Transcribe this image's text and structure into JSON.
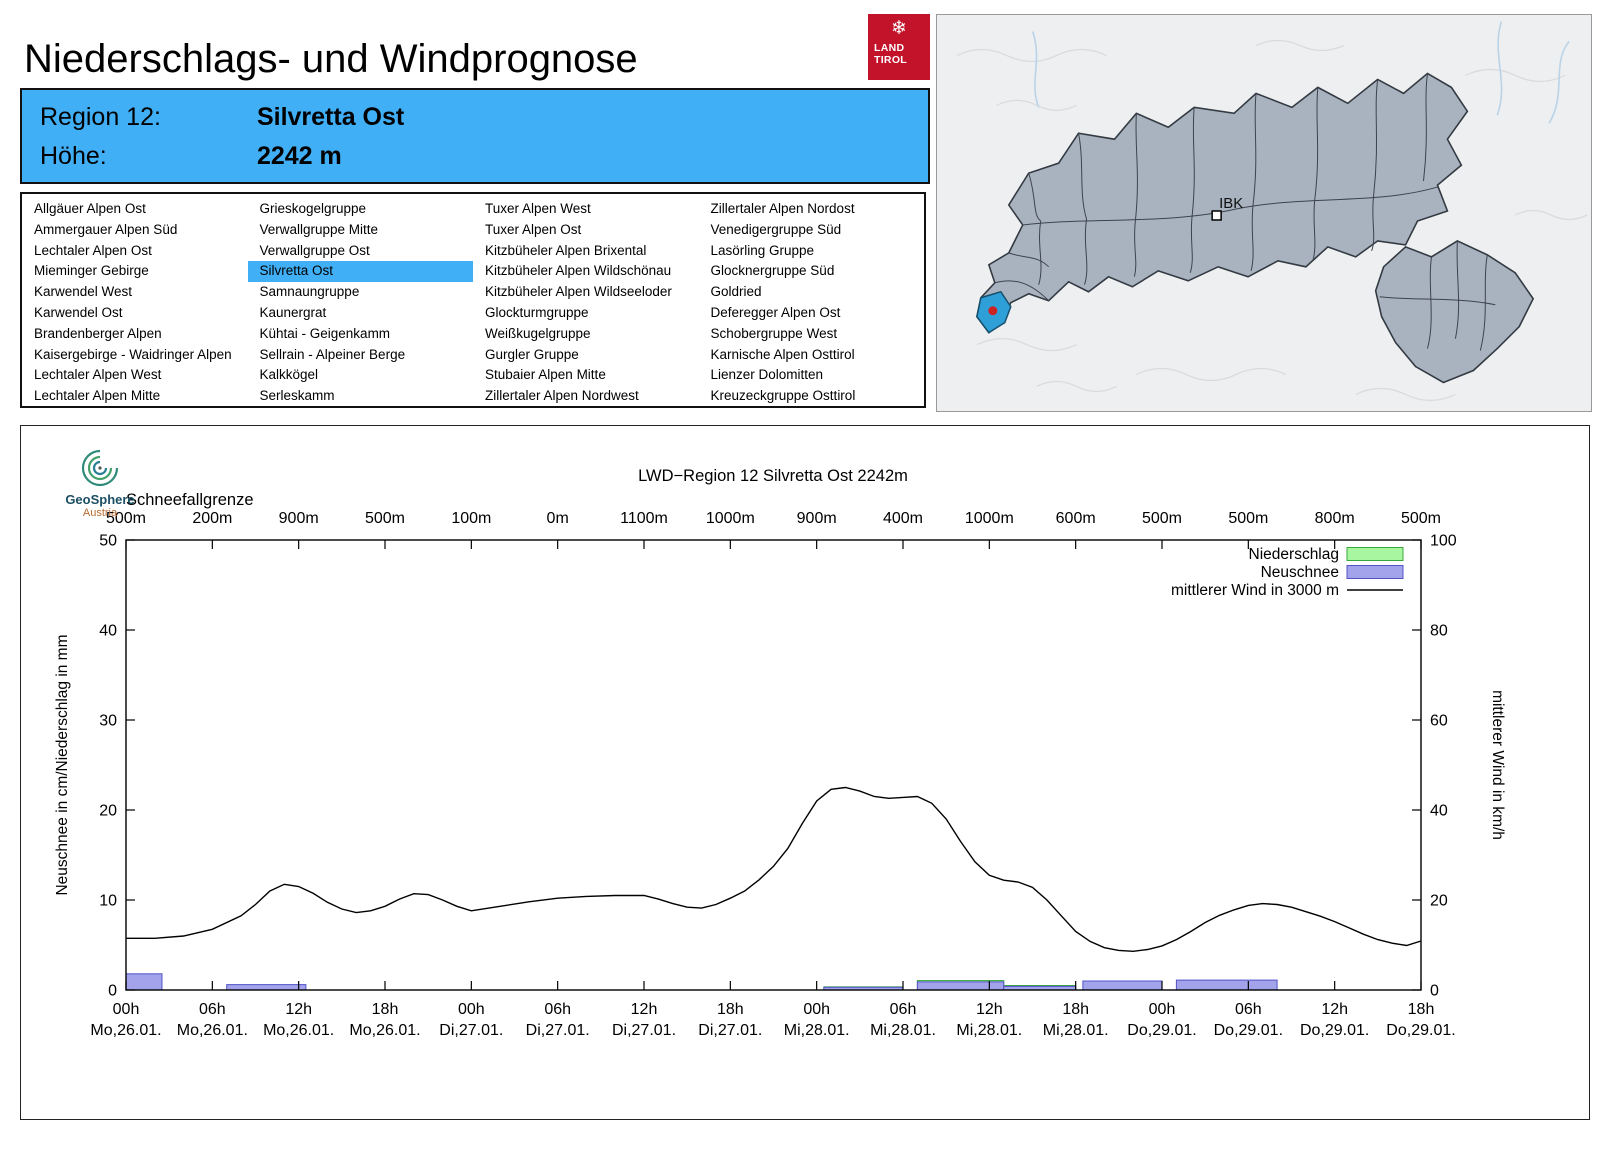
{
  "page": {
    "title": "Niederschlags- und Windprognose"
  },
  "colors": {
    "highlight_blue": "#41AFF5",
    "logo_red": "#C3132B",
    "niederschlag_fill": "#A8F7A0",
    "niederschlag_border": "#37A93C",
    "neuschnee_fill": "#A3A3EC",
    "neuschnee_border": "#5353C8",
    "wind_line": "#000000",
    "map_region_fill": "#A9B3C0",
    "map_region_border": "#343A42",
    "map_selected_fill": "#2F9FD8",
    "map_marker_red": "#CC2222"
  },
  "logo": {
    "line1": "LAND",
    "line2": "TIROL",
    "snowflake": "❄"
  },
  "map": {
    "city_label": "IBK"
  },
  "region_header": {
    "region_label": "Region 12:",
    "region_value": "Silvretta Ost",
    "altitude_label": "Höhe:",
    "altitude_value": "2242 m"
  },
  "region_list": {
    "selected": "Silvretta Ost",
    "columns": [
      [
        "Allgäuer Alpen Ost",
        "Ammergauer Alpen Süd",
        "Lechtaler Alpen Ost",
        "Mieminger Gebirge",
        "Karwendel West",
        "Karwendel Ost",
        "Brandenberger Alpen",
        "Kaisergebirge - Waidringer Alpen",
        "Lechtaler Alpen West",
        "Lechtaler Alpen Mitte"
      ],
      [
        "Grieskogelgruppe",
        "Verwallgruppe Mitte",
        "Verwallgruppe Ost",
        "Silvretta Ost",
        "Samnaungruppe",
        "Kaunergrat",
        "Kühtai - Geigenkamm",
        "Sellrain - Alpeiner Berge",
        "Kalkkögel",
        "Serleskamm"
      ],
      [
        "Tuxer Alpen West",
        "Tuxer Alpen Ost",
        "Kitzbüheler Alpen Brixental",
        "Kitzbüheler Alpen Wildschönau",
        "Kitzbüheler Alpen Wildseeloder",
        "Glockturmgruppe",
        "Weißkugelgruppe",
        "Gurgler Gruppe",
        "Stubaier Alpen Mitte",
        "Zillertaler Alpen Nordwest"
      ],
      [
        "Zillertaler Alpen Nordost",
        "Venedigergruppe Süd",
        "Lasörling Gruppe",
        "Glocknergruppe Süd",
        "Goldried",
        "Deferegger Alpen Ost",
        "Schobergruppe West",
        "Karnische Alpen Osttirol",
        "Lienzer Dolomitten",
        "Kreuzeckgruppe Osttirol"
      ]
    ]
  },
  "geosphere": {
    "name": "GeoSphere",
    "country": "Austria"
  },
  "chart_data": {
    "type": "line+bar",
    "title": "LWD−Region 12 Silvretta Ost 2242m",
    "snowline_label": "Schneefallgrenze",
    "snowline_values": [
      "500m",
      "200m",
      "900m",
      "500m",
      "100m",
      "0m",
      "1100m",
      "1000m",
      "900m",
      "400m",
      "1000m",
      "600m",
      "500m",
      "500m",
      "800m",
      "500m"
    ],
    "ylabel_left": "Neuschnee in cm/Niederschlag in mm",
    "ylabel_right": "mittlerer Wind in km/h",
    "ylim_left": [
      0,
      50
    ],
    "ylim_right": [
      0,
      100
    ],
    "yticks_left": [
      0,
      10,
      20,
      30,
      40,
      50
    ],
    "yticks_right": [
      0,
      20,
      40,
      60,
      80,
      100
    ],
    "x_hours_range": [
      0,
      90
    ],
    "x_tick_step_hours": 6,
    "x_ticks": [
      {
        "hour": "00h",
        "day": "Mo,26.01."
      },
      {
        "hour": "06h",
        "day": "Mo,26.01."
      },
      {
        "hour": "12h",
        "day": "Mo,26.01."
      },
      {
        "hour": "18h",
        "day": "Mo,26.01."
      },
      {
        "hour": "00h",
        "day": "Di,27.01."
      },
      {
        "hour": "06h",
        "day": "Di,27.01."
      },
      {
        "hour": "12h",
        "day": "Di,27.01."
      },
      {
        "hour": "18h",
        "day": "Di,27.01."
      },
      {
        "hour": "00h",
        "day": "Mi,28.01."
      },
      {
        "hour": "06h",
        "day": "Mi,28.01."
      },
      {
        "hour": "12h",
        "day": "Mi,28.01."
      },
      {
        "hour": "18h",
        "day": "Mi,28.01."
      },
      {
        "hour": "00h",
        "day": "Do,29.01."
      },
      {
        "hour": "06h",
        "day": "Do,29.01."
      },
      {
        "hour": "12h",
        "day": "Do,29.01."
      },
      {
        "hour": "18h",
        "day": "Do,29.01."
      }
    ],
    "legend": [
      {
        "label": "Niederschlag",
        "type": "box",
        "fill": "#A8F7A0",
        "border": "#37A93C"
      },
      {
        "label": "Neuschnee",
        "type": "box",
        "fill": "#A3A3EC",
        "border": "#5353C8"
      },
      {
        "label": "mittlerer Wind in 3000 m",
        "type": "line",
        "color": "#000000"
      }
    ],
    "wind_series": {
      "name": "mittlerer Wind in 3000 m",
      "unit": "km/h",
      "points": [
        [
          0,
          11.5
        ],
        [
          2,
          11.5
        ],
        [
          4,
          12
        ],
        [
          6,
          13.5
        ],
        [
          8,
          16.5
        ],
        [
          9,
          19
        ],
        [
          10,
          22
        ],
        [
          11,
          23.5
        ],
        [
          12,
          23
        ],
        [
          13,
          21.5
        ],
        [
          14,
          19.5
        ],
        [
          15,
          18
        ],
        [
          16,
          17.2
        ],
        [
          17,
          17.6
        ],
        [
          18,
          18.6
        ],
        [
          19,
          20.2
        ],
        [
          20,
          21.4
        ],
        [
          21,
          21.2
        ],
        [
          22,
          20
        ],
        [
          23,
          18.6
        ],
        [
          24,
          17.6
        ],
        [
          26,
          18.6
        ],
        [
          28,
          19.6
        ],
        [
          30,
          20.4
        ],
        [
          32,
          20.8
        ],
        [
          34,
          21
        ],
        [
          36,
          21
        ],
        [
          37,
          20.2
        ],
        [
          38,
          19.2
        ],
        [
          39,
          18.4
        ],
        [
          40,
          18.2
        ],
        [
          41,
          19
        ],
        [
          42,
          20.4
        ],
        [
          43,
          22
        ],
        [
          44,
          24.5
        ],
        [
          45,
          27.5
        ],
        [
          46,
          31.5
        ],
        [
          47,
          37
        ],
        [
          48,
          42
        ],
        [
          49,
          44.6
        ],
        [
          50,
          45
        ],
        [
          51,
          44.2
        ],
        [
          52,
          43
        ],
        [
          53,
          42.6
        ],
        [
          54,
          42.8
        ],
        [
          55,
          43
        ],
        [
          56,
          41.5
        ],
        [
          57,
          38
        ],
        [
          58,
          33
        ],
        [
          59,
          28.5
        ],
        [
          60,
          25.5
        ],
        [
          61,
          24.4
        ],
        [
          62,
          24
        ],
        [
          63,
          22.8
        ],
        [
          64,
          20
        ],
        [
          65,
          16.5
        ],
        [
          66,
          13
        ],
        [
          67,
          10.8
        ],
        [
          68,
          9.4
        ],
        [
          69,
          8.8
        ],
        [
          70,
          8.6
        ],
        [
          71,
          9
        ],
        [
          72,
          9.8
        ],
        [
          73,
          11.2
        ],
        [
          74,
          13
        ],
        [
          75,
          15
        ],
        [
          76,
          16.6
        ],
        [
          77,
          17.8
        ],
        [
          78,
          18.8
        ],
        [
          79,
          19.2
        ],
        [
          80,
          19
        ],
        [
          81,
          18.4
        ],
        [
          82,
          17.4
        ],
        [
          83,
          16.4
        ],
        [
          84,
          15.2
        ],
        [
          85,
          13.8
        ],
        [
          86,
          12.4
        ],
        [
          87,
          11.2
        ],
        [
          88,
          10.4
        ],
        [
          89,
          9.9
        ],
        [
          90,
          10.9
        ]
      ]
    },
    "niederschlag_bars": [
      [
        48.5,
        54,
        0.35
      ],
      [
        55,
        61,
        1.05
      ],
      [
        61,
        66,
        0.5
      ]
    ],
    "neuschnee_bars": [
      [
        0,
        2.5,
        1.8
      ],
      [
        7,
        12.5,
        0.6
      ],
      [
        48.5,
        54,
        0.3
      ],
      [
        55,
        61,
        0.9
      ],
      [
        61,
        66,
        0.4
      ],
      [
        66.5,
        72,
        1.0
      ],
      [
        73,
        80,
        1.1
      ]
    ]
  }
}
